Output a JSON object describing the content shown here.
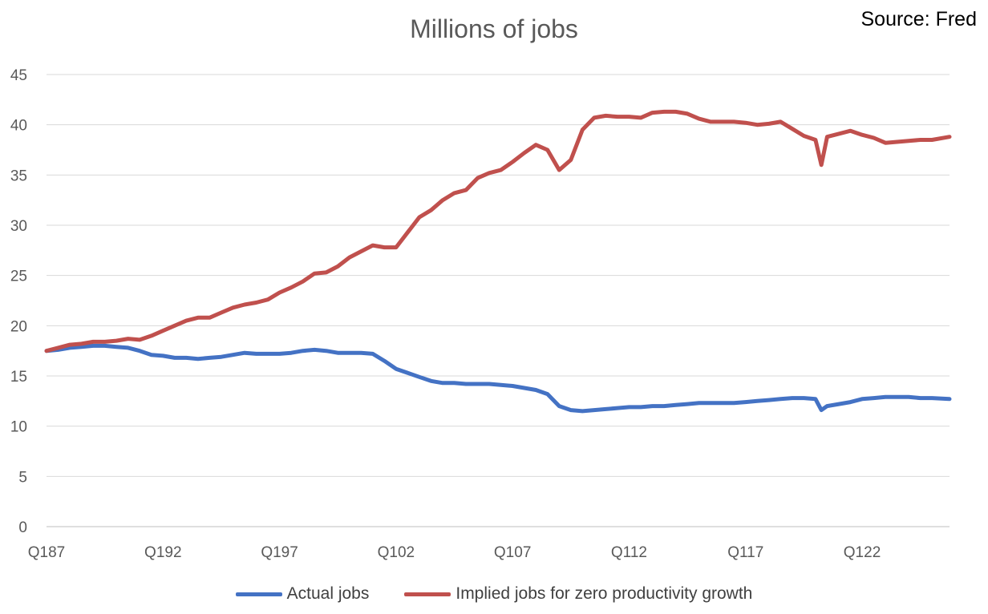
{
  "chart_data": {
    "type": "line",
    "title": "Millions of jobs",
    "source": "Source: Fred",
    "xlabel": "",
    "ylabel": "",
    "ylim": [
      0,
      45
    ],
    "yticks": [
      0,
      5,
      10,
      15,
      20,
      25,
      30,
      35,
      40,
      45
    ],
    "xtick_labels": [
      "Q187",
      "Q192",
      "Q197",
      "Q102",
      "Q107",
      "Q112",
      "Q117",
      "Q122"
    ],
    "x_start_year": 1987,
    "x_end_year": 2025.75,
    "grid": true,
    "legend_position": "bottom",
    "series": [
      {
        "name": "Actual jobs",
        "color": "#4472C4",
        "points": [
          [
            1987,
            17.5
          ],
          [
            1987.5,
            17.6
          ],
          [
            1988,
            17.8
          ],
          [
            1988.5,
            17.9
          ],
          [
            1989,
            18.0
          ],
          [
            1989.5,
            18.0
          ],
          [
            1990,
            17.9
          ],
          [
            1990.5,
            17.8
          ],
          [
            1991,
            17.5
          ],
          [
            1991.5,
            17.1
          ],
          [
            1992,
            17.0
          ],
          [
            1992.5,
            16.8
          ],
          [
            1993,
            16.8
          ],
          [
            1993.5,
            16.7
          ],
          [
            1994,
            16.8
          ],
          [
            1994.5,
            16.9
          ],
          [
            1995,
            17.1
          ],
          [
            1995.5,
            17.3
          ],
          [
            1996,
            17.2
          ],
          [
            1996.5,
            17.2
          ],
          [
            1997,
            17.2
          ],
          [
            1997.5,
            17.3
          ],
          [
            1998,
            17.5
          ],
          [
            1998.5,
            17.6
          ],
          [
            1999,
            17.5
          ],
          [
            1999.5,
            17.3
          ],
          [
            2000,
            17.3
          ],
          [
            2000.5,
            17.3
          ],
          [
            2001,
            17.2
          ],
          [
            2001.5,
            16.5
          ],
          [
            2002,
            15.7
          ],
          [
            2002.5,
            15.3
          ],
          [
            2003,
            14.9
          ],
          [
            2003.5,
            14.5
          ],
          [
            2004,
            14.3
          ],
          [
            2004.5,
            14.3
          ],
          [
            2005,
            14.2
          ],
          [
            2005.5,
            14.2
          ],
          [
            2006,
            14.2
          ],
          [
            2006.5,
            14.1
          ],
          [
            2007,
            14.0
          ],
          [
            2007.5,
            13.8
          ],
          [
            2008,
            13.6
          ],
          [
            2008.5,
            13.2
          ],
          [
            2009,
            12.0
          ],
          [
            2009.5,
            11.6
          ],
          [
            2010,
            11.5
          ],
          [
            2010.5,
            11.6
          ],
          [
            2011,
            11.7
          ],
          [
            2011.5,
            11.8
          ],
          [
            2012,
            11.9
          ],
          [
            2012.5,
            11.9
          ],
          [
            2013,
            12.0
          ],
          [
            2013.5,
            12.0
          ],
          [
            2014,
            12.1
          ],
          [
            2014.5,
            12.2
          ],
          [
            2015,
            12.3
          ],
          [
            2015.5,
            12.3
          ],
          [
            2016,
            12.3
          ],
          [
            2016.5,
            12.3
          ],
          [
            2017,
            12.4
          ],
          [
            2017.5,
            12.5
          ],
          [
            2018,
            12.6
          ],
          [
            2018.5,
            12.7
          ],
          [
            2019,
            12.8
          ],
          [
            2019.5,
            12.8
          ],
          [
            2020,
            12.7
          ],
          [
            2020.25,
            11.6
          ],
          [
            2020.5,
            12.0
          ],
          [
            2021,
            12.2
          ],
          [
            2021.5,
            12.4
          ],
          [
            2022,
            12.7
          ],
          [
            2022.5,
            12.8
          ],
          [
            2023,
            12.9
          ],
          [
            2023.5,
            12.9
          ],
          [
            2024,
            12.9
          ],
          [
            2024.5,
            12.8
          ],
          [
            2025,
            12.8
          ],
          [
            2025.75,
            12.7
          ]
        ]
      },
      {
        "name": "Implied jobs for zero productivity growth",
        "color": "#C0504D",
        "points": [
          [
            1987,
            17.5
          ],
          [
            1987.5,
            17.8
          ],
          [
            1988,
            18.1
          ],
          [
            1988.5,
            18.2
          ],
          [
            1989,
            18.4
          ],
          [
            1989.5,
            18.4
          ],
          [
            1990,
            18.5
          ],
          [
            1990.5,
            18.7
          ],
          [
            1991,
            18.6
          ],
          [
            1991.5,
            19.0
          ],
          [
            1992,
            19.5
          ],
          [
            1992.5,
            20.0
          ],
          [
            1993,
            20.5
          ],
          [
            1993.5,
            20.8
          ],
          [
            1994,
            20.8
          ],
          [
            1994.5,
            21.3
          ],
          [
            1995,
            21.8
          ],
          [
            1995.5,
            22.1
          ],
          [
            1996,
            22.3
          ],
          [
            1996.5,
            22.6
          ],
          [
            1997,
            23.3
          ],
          [
            1997.5,
            23.8
          ],
          [
            1998,
            24.4
          ],
          [
            1998.5,
            25.2
          ],
          [
            1999,
            25.3
          ],
          [
            1999.5,
            25.9
          ],
          [
            2000,
            26.8
          ],
          [
            2000.5,
            27.4
          ],
          [
            2001,
            28.0
          ],
          [
            2001.5,
            27.8
          ],
          [
            2002,
            27.8
          ],
          [
            2002.5,
            29.3
          ],
          [
            2003,
            30.8
          ],
          [
            2003.5,
            31.5
          ],
          [
            2004,
            32.5
          ],
          [
            2004.5,
            33.2
          ],
          [
            2005,
            33.5
          ],
          [
            2005.5,
            34.7
          ],
          [
            2006,
            35.2
          ],
          [
            2006.5,
            35.5
          ],
          [
            2007,
            36.3
          ],
          [
            2007.5,
            37.2
          ],
          [
            2008,
            38.0
          ],
          [
            2008.5,
            37.5
          ],
          [
            2009,
            35.5
          ],
          [
            2009.5,
            36.5
          ],
          [
            2010,
            39.5
          ],
          [
            2010.5,
            40.7
          ],
          [
            2011,
            40.9
          ],
          [
            2011.5,
            40.8
          ],
          [
            2012,
            40.8
          ],
          [
            2012.5,
            40.7
          ],
          [
            2013,
            41.2
          ],
          [
            2013.5,
            41.3
          ],
          [
            2014,
            41.3
          ],
          [
            2014.5,
            41.1
          ],
          [
            2015,
            40.6
          ],
          [
            2015.5,
            40.3
          ],
          [
            2016,
            40.3
          ],
          [
            2016.5,
            40.3
          ],
          [
            2017,
            40.2
          ],
          [
            2017.5,
            40.0
          ],
          [
            2018,
            40.1
          ],
          [
            2018.5,
            40.3
          ],
          [
            2019,
            39.6
          ],
          [
            2019.5,
            38.9
          ],
          [
            2020,
            38.5
          ],
          [
            2020.25,
            36.0
          ],
          [
            2020.5,
            38.8
          ],
          [
            2021,
            39.1
          ],
          [
            2021.5,
            39.4
          ],
          [
            2022,
            39.0
          ],
          [
            2022.5,
            38.7
          ],
          [
            2023,
            38.2
          ],
          [
            2023.5,
            38.3
          ],
          [
            2024,
            38.4
          ],
          [
            2024.5,
            38.5
          ],
          [
            2025,
            38.5
          ],
          [
            2025.75,
            38.8
          ]
        ]
      }
    ]
  }
}
